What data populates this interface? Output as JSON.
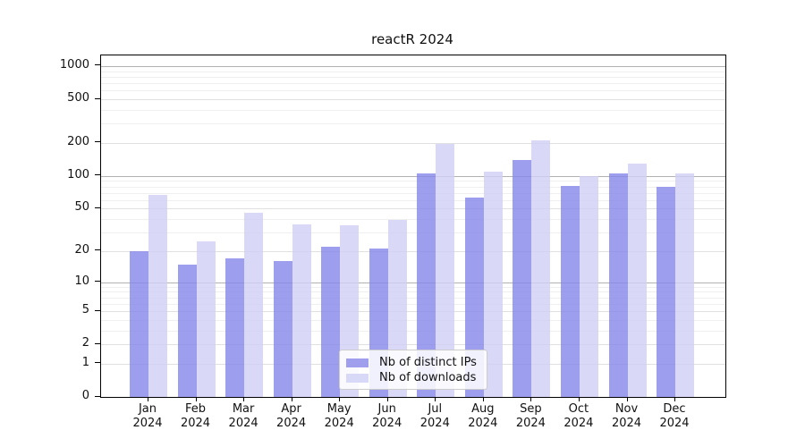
{
  "chart_data": {
    "type": "bar",
    "title": "reactR 2024",
    "categories": [
      "Jan",
      "Feb",
      "Mar",
      "Apr",
      "May",
      "Jun",
      "Jul",
      "Aug",
      "Sep",
      "Oct",
      "Nov",
      "Dec"
    ],
    "category_year": "2024",
    "series": [
      {
        "name": "Nb of distinct IPs",
        "fill": "rgba(134,134,235,0.8)",
        "swatch": "#9f9fee",
        "values": [
          20,
          15,
          17,
          16,
          22,
          21,
          106,
          63,
          140,
          81,
          105,
          80
        ]
      },
      {
        "name": "Nb of downloads",
        "fill": "rgba(207,207,245,0.8)",
        "swatch": "#d8d8f7",
        "values": [
          67,
          25,
          46,
          36,
          35,
          39,
          198,
          110,
          213,
          100,
          130,
          105
        ]
      }
    ],
    "xlabel": "",
    "ylabel": "",
    "yscale": "log1p",
    "ylim": [
      0,
      1250
    ],
    "yticks": [
      0,
      1,
      2,
      5,
      10,
      20,
      50,
      100,
      200,
      500,
      1000
    ],
    "minor_gridlines": [
      3,
      4,
      6,
      7,
      8,
      9,
      30,
      40,
      60,
      70,
      80,
      90,
      300,
      400,
      600,
      700,
      800,
      900
    ],
    "grid": "on",
    "legend_position": "lower-center"
  },
  "colors": {
    "grid_minor": "#efefef",
    "grid_major": "#e0e0e0",
    "grid_decade": "#b2b2b2",
    "spine": "#000000",
    "text": "#111111",
    "legend_border": "#cccccc",
    "legend_bg": "rgba(255,255,255,0.85)"
  }
}
